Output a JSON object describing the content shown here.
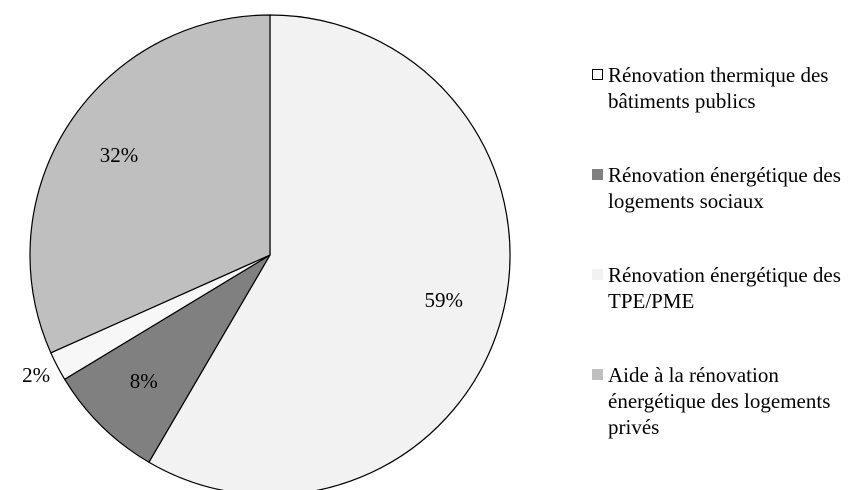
{
  "chart_data": {
    "type": "pie",
    "categories": [
      "Rénovation thermique des bâtiments publics",
      "Rénovation énergétique des logements sociaux",
      "Rénovation énergétique des TPE/PME",
      "Aide à la rénovation énergétique des logements privés"
    ],
    "values": [
      59,
      8,
      2,
      32
    ],
    "value_labels": [
      "59%",
      "8%",
      "2%",
      "32%"
    ],
    "colors": [
      "#f2f2f2",
      "#808080",
      "#f7f7f7",
      "#bfbfbf"
    ],
    "legend_colors": [
      "#ffffff",
      "#808080",
      "#f2f2f2",
      "#bfbfbf"
    ],
    "legend": "right"
  }
}
